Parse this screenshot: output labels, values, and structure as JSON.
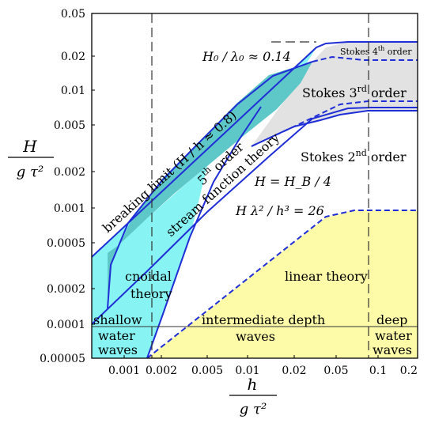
{
  "diagram": {
    "y_ticks": [
      "0.05",
      "0.02",
      "0.01",
      "0.005",
      "0.002",
      "0.001",
      "0.0005",
      "0.0002",
      "0.0001",
      "0.00005"
    ],
    "x_ticks": [
      "0.001",
      "0.002",
      "0.005",
      "0.01",
      "0.02",
      "0.05",
      "0.1",
      "0.2"
    ],
    "y_label_num": "H",
    "y_label_den": "g τ²",
    "x_label_num": "h",
    "x_label_den": "g τ²",
    "labels": {
      "breaking": "breaking limit (H / h ≈ 0.8)",
      "h0": "H₀ / λ₀ ≈ 0.14",
      "stokes4_base": "Stokes 4",
      "stokes4_sup": "th",
      "stokes4_tail": " order",
      "stokes3_base": "Stokes 3",
      "stokes3_sup": "rd",
      "stokes3_tail": " order",
      "stokes2_base": "Stokes 2",
      "stokes2_sup": "nd",
      "stokes2_tail": " order",
      "fifth_base": "5",
      "fifth_sup": "th",
      "fifth_tail": " order",
      "stream_function": "stream function theory",
      "hb": "H = H_B / 4",
      "ursell": "H λ² / h³ = 26",
      "cnoidal_1": "cnoidal",
      "cnoidal_2": "theory",
      "linear": "linear theory",
      "shallow_1": "shallow",
      "shallow_2": "water",
      "shallow_3": "waves",
      "intermediate_1": "intermediate depth",
      "intermediate_2": "waves",
      "deep_1": "deep",
      "deep_2": "water",
      "deep_3": "waves"
    },
    "colors": {
      "cyan": "#88f3f3",
      "teal": "#5ec7c7",
      "gray": "#e2e2e2",
      "yellow": "#fdfaa8",
      "blue": "#1f2ed6"
    }
  }
}
